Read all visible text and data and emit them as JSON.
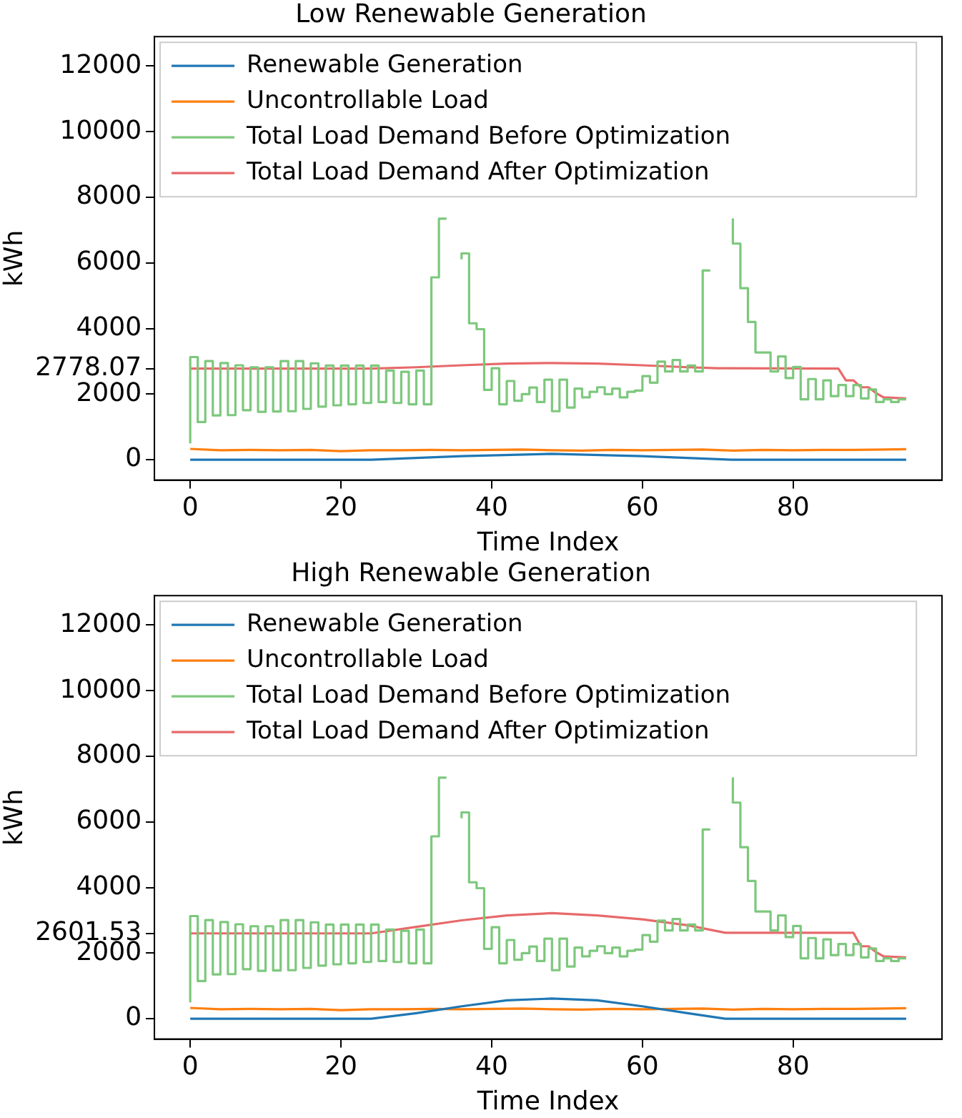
{
  "chart_data": [
    {
      "type": "line",
      "title": "Low Renewable Generation",
      "xlabel": "Time Index",
      "ylabel": "kWh",
      "xlim": [
        -4.75,
        99.75
      ],
      "xticks": [
        0,
        20,
        40,
        60,
        80
      ],
      "ylim": [
        -620,
        12900
      ],
      "yticks": [
        0,
        2000,
        2778.07,
        4000,
        6000,
        8000,
        10000,
        12000
      ],
      "legend": "top left",
      "grid": false,
      "x": [
        0,
        1,
        2,
        3,
        4,
        5,
        6,
        7,
        8,
        9,
        10,
        11,
        12,
        13,
        14,
        15,
        16,
        17,
        18,
        19,
        20,
        21,
        22,
        23,
        24,
        25,
        26,
        27,
        28,
        29,
        30,
        31,
        32,
        33,
        34,
        35,
        36,
        37,
        38,
        39,
        40,
        41,
        42,
        43,
        44,
        45,
        46,
        47,
        48,
        49,
        50,
        51,
        52,
        53,
        54,
        55,
        56,
        57,
        58,
        59,
        60,
        61,
        62,
        63,
        64,
        65,
        66,
        67,
        68,
        69,
        70,
        71,
        72,
        73,
        74,
        75,
        76,
        77,
        78,
        79,
        80,
        81,
        82,
        83,
        84,
        85,
        86,
        87,
        88,
        89,
        90,
        91,
        92,
        93,
        94,
        95
      ],
      "series": [
        {
          "name": "Renewable Generation",
          "color": "#1f77b4",
          "x": [
            0,
            24,
            36,
            48,
            60,
            72,
            95
          ],
          "values": [
            0,
            0,
            110,
            180,
            110,
            0,
            0
          ]
        },
        {
          "name": "Uncontrollable Load",
          "color": "#ff7f0e",
          "x": [
            0,
            4,
            8,
            12,
            16,
            20,
            24,
            28,
            32,
            36,
            40,
            44,
            48,
            52,
            56,
            60,
            64,
            68,
            72,
            76,
            80,
            84,
            88,
            92,
            95
          ],
          "values": [
            330,
            290,
            300,
            290,
            300,
            260,
            290,
            290,
            300,
            290,
            300,
            310,
            290,
            280,
            300,
            290,
            300,
            310,
            280,
            300,
            290,
            300,
            300,
            310,
            320
          ]
        },
        {
          "name": "Total Load Demand Before Optimization",
          "color": "#7dc87d",
          "type": "step",
          "values": [
            500,
            3130,
            1150,
            3010,
            1350,
            2950,
            1360,
            2880,
            1510,
            2820,
            1460,
            2820,
            1470,
            3010,
            1480,
            3010,
            1550,
            2940,
            1620,
            2870,
            1660,
            2870,
            1690,
            2870,
            1730,
            2870,
            1760,
            2720,
            1730,
            2680,
            1690,
            2720,
            1690,
            5560,
            7350,
            null,
            6110,
            6290,
            4160,
            3980,
            2130,
            2790,
            1690,
            2400,
            1800,
            2000,
            2200,
            1760,
            2440,
            1480,
            2440,
            1590,
            2170,
            1900,
            2070,
            2210,
            2000,
            2170,
            1900,
            2070,
            2110,
            2550,
            2350,
            2990,
            2690,
            3040,
            2690,
            2870,
            2690,
            5770,
            null,
            null,
            7360,
            6590,
            5230,
            4200,
            3270,
            3270,
            2690,
            3150,
            2490,
            2830,
            1840,
            2460,
            1840,
            2420,
            1940,
            2280,
            1940,
            2280,
            1870,
            2140,
            1760,
            1840,
            1760,
            1840
          ]
        },
        {
          "name": "Total Load Demand After Optimization",
          "color": "#e8696a",
          "x": [
            0,
            24,
            30,
            36,
            42,
            48,
            54,
            60,
            66,
            70,
            86,
            87,
            88,
            89,
            90,
            91,
            92,
            95
          ],
          "values": [
            2778.07,
            2778.07,
            2820,
            2880,
            2930,
            2950,
            2930,
            2880,
            2820,
            2790,
            2780,
            2420,
            2420,
            2210,
            2210,
            2030,
            1900,
            1870
          ]
        }
      ]
    },
    {
      "type": "line",
      "title": "High Renewable Generation",
      "xlabel": "Time Index",
      "ylabel": "kWh",
      "xlim": [
        -4.75,
        99.75
      ],
      "xticks": [
        0,
        20,
        40,
        60,
        80
      ],
      "ylim": [
        -620,
        12900
      ],
      "yticks": [
        0,
        2000,
        2601.53,
        4000,
        6000,
        8000,
        10000,
        12000
      ],
      "legend": "top left",
      "grid": false,
      "x": [
        0,
        1,
        2,
        3,
        4,
        5,
        6,
        7,
        8,
        9,
        10,
        11,
        12,
        13,
        14,
        15,
        16,
        17,
        18,
        19,
        20,
        21,
        22,
        23,
        24,
        25,
        26,
        27,
        28,
        29,
        30,
        31,
        32,
        33,
        34,
        35,
        36,
        37,
        38,
        39,
        40,
        41,
        42,
        43,
        44,
        45,
        46,
        47,
        48,
        49,
        50,
        51,
        52,
        53,
        54,
        55,
        56,
        57,
        58,
        59,
        60,
        61,
        62,
        63,
        64,
        65,
        66,
        67,
        68,
        69,
        70,
        71,
        72,
        73,
        74,
        75,
        76,
        77,
        78,
        79,
        80,
        81,
        82,
        83,
        84,
        85,
        86,
        87,
        88,
        89,
        90,
        91,
        92,
        93,
        94,
        95
      ],
      "series": [
        {
          "name": "Renewable Generation",
          "color": "#1f77b4",
          "x": [
            0,
            24,
            30,
            36,
            42,
            48,
            54,
            60,
            66,
            71,
            95
          ],
          "values": [
            0,
            0,
            170,
            380,
            560,
            615,
            560,
            380,
            170,
            0,
            0
          ]
        },
        {
          "name": "Uncontrollable Load",
          "color": "#ff7f0e",
          "x": [
            0,
            4,
            8,
            12,
            16,
            20,
            24,
            28,
            32,
            36,
            40,
            44,
            48,
            52,
            56,
            60,
            64,
            68,
            72,
            76,
            80,
            84,
            88,
            92,
            95
          ],
          "values": [
            330,
            290,
            300,
            290,
            300,
            260,
            290,
            290,
            300,
            290,
            300,
            310,
            290,
            280,
            300,
            290,
            300,
            310,
            280,
            300,
            290,
            300,
            300,
            310,
            320
          ]
        },
        {
          "name": "Total Load Demand Before Optimization",
          "color": "#7dc87d",
          "type": "step",
          "values": [
            500,
            3130,
            1150,
            3010,
            1350,
            2950,
            1360,
            2880,
            1510,
            2820,
            1460,
            2820,
            1470,
            3010,
            1480,
            3010,
            1550,
            2940,
            1620,
            2870,
            1660,
            2870,
            1690,
            2870,
            1730,
            2870,
            1760,
            2720,
            1730,
            2680,
            1690,
            2720,
            1690,
            5560,
            7350,
            null,
            6110,
            6290,
            4160,
            3980,
            2130,
            2790,
            1690,
            2400,
            1800,
            2000,
            2200,
            1760,
            2440,
            1480,
            2440,
            1590,
            2170,
            1900,
            2070,
            2210,
            2000,
            2170,
            1900,
            2070,
            2110,
            2550,
            2350,
            2990,
            2690,
            3040,
            2690,
            2870,
            2690,
            5770,
            null,
            null,
            7360,
            6590,
            5230,
            4200,
            3270,
            3270,
            2690,
            3150,
            2490,
            2830,
            1840,
            2460,
            1840,
            2420,
            1940,
            2280,
            1940,
            2280,
            1870,
            2140,
            1760,
            1840,
            1760,
            1840
          ]
        },
        {
          "name": "Total Load Demand After Optimization",
          "color": "#e8696a",
          "x": [
            0,
            24,
            30,
            36,
            42,
            48,
            54,
            60,
            66,
            71,
            88,
            89,
            90,
            91,
            92,
            95
          ],
          "values": [
            2601.53,
            2601.53,
            2800,
            3000,
            3150,
            3220,
            3150,
            3030,
            2850,
            2620,
            2620,
            2210,
            2210,
            2030,
            1900,
            1870
          ]
        }
      ]
    }
  ]
}
